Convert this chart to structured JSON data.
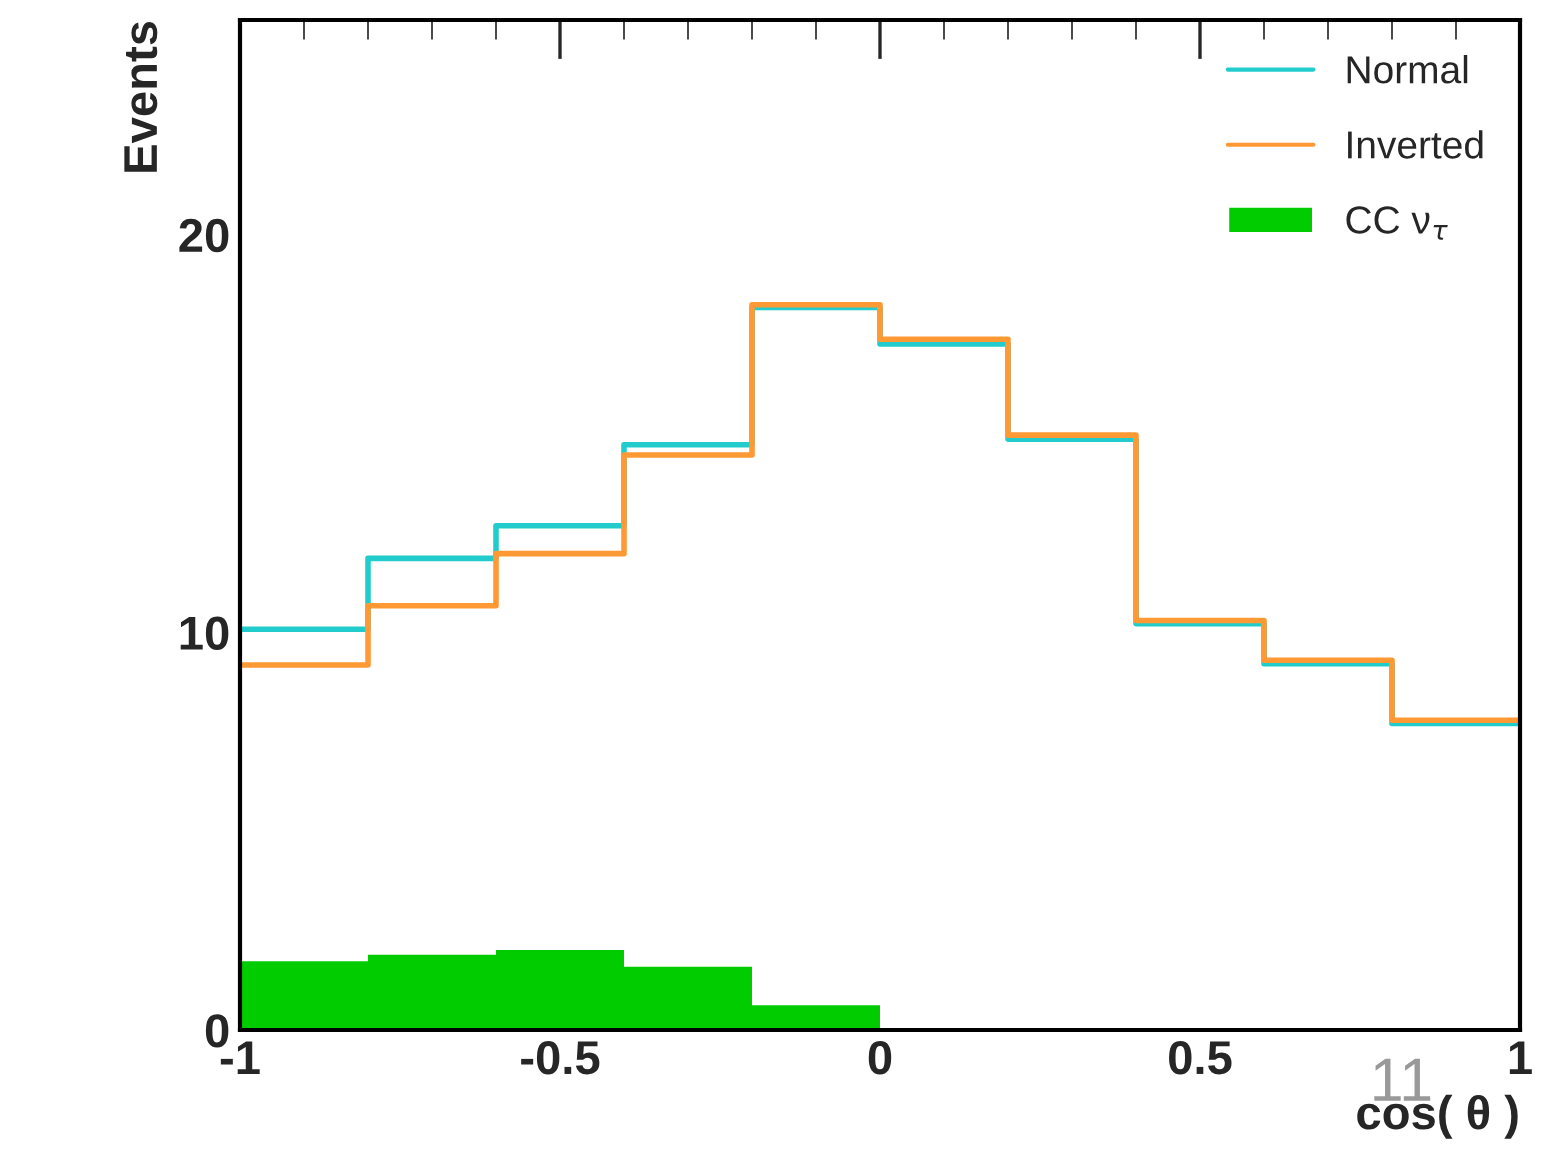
{
  "chart_data": {
    "type": "histogram",
    "xlabel": "cos( θ )",
    "ylabel": "Events",
    "bins": [
      -1,
      -0.8,
      -0.6,
      -0.4,
      -0.2,
      0,
      0.2,
      0.4,
      0.6,
      0.8,
      1
    ],
    "series": [
      {
        "name": "Normal",
        "type": "step",
        "x": [
          -1,
          -0.8,
          -0.6,
          -0.4,
          -0.2,
          0,
          0.2,
          0.4,
          0.6,
          0.8,
          1
        ],
        "color": "#22cccc",
        "values": [
          10.08,
          11.86,
          12.68,
          14.72,
          18.17,
          17.25,
          14.86,
          10.22,
          9.21,
          7.71,
          7.71
        ]
      },
      {
        "name": "Inverted",
        "type": "step",
        "x": [
          -1,
          -0.8,
          -0.6,
          -0.4,
          -0.2,
          0,
          0.2,
          0.4,
          0.6,
          0.8,
          1
        ],
        "color": "#ff9933",
        "values": [
          9.18,
          10.67,
          11.98,
          14.46,
          18.24,
          17.37,
          14.96,
          10.3,
          9.3,
          7.79,
          7.79
        ]
      },
      {
        "name": "CC ν$_{τ}$",
        "type": "histogram",
        "color": "#00cc00",
        "values": [
          1.73,
          1.89,
          2.01,
          1.59,
          0.62,
          0.05,
          0.03,
          0.03,
          0.03,
          0.03
        ]
      }
    ],
    "xlim": [
      -1,
      1
    ],
    "ylim": [
      0,
      25.4
    ],
    "xticks": [
      -1,
      -0.5,
      0,
      0.5,
      1
    ],
    "yticks": [
      0,
      10,
      20
    ],
    "legend": "top right",
    "grid": false,
    "annotations": [
      "11"
    ]
  }
}
